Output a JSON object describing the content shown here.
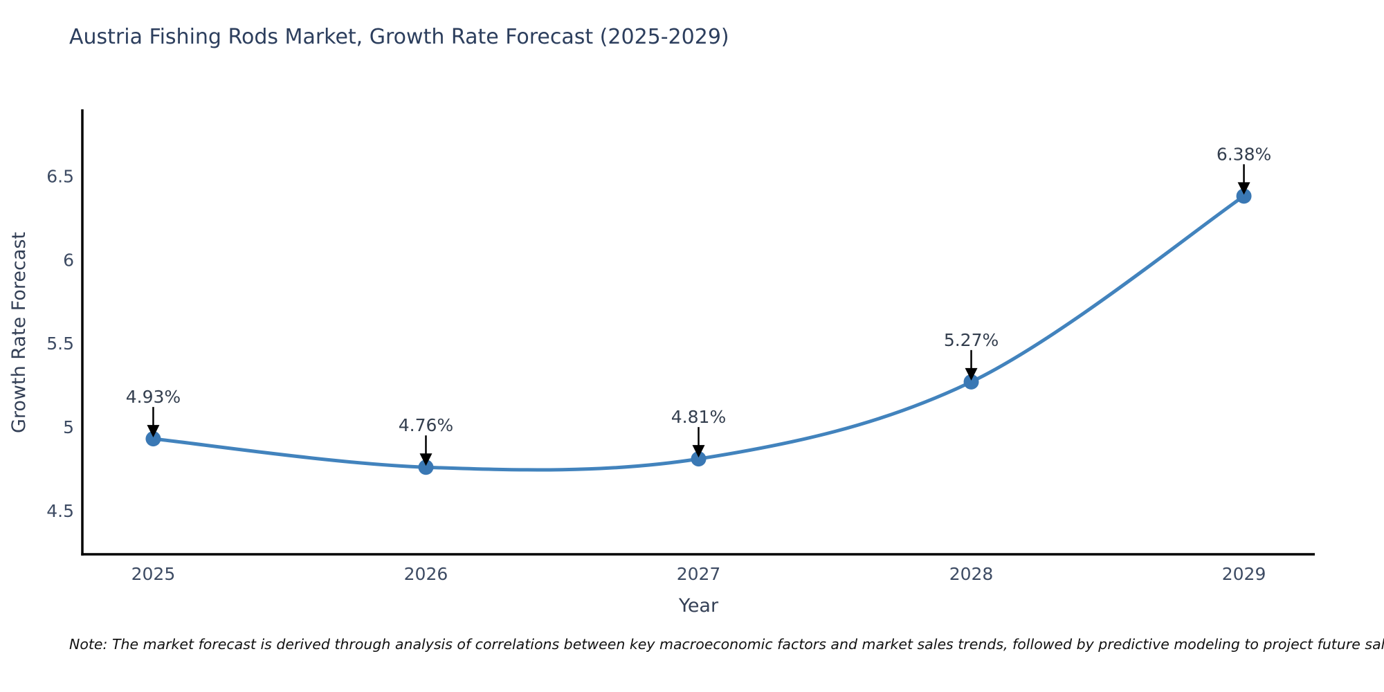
{
  "page": {
    "title": "Austria Fishing Rods Market, Growth Rate Forecast (2025-2029)",
    "note": "Note: The market forecast is derived through analysis of correlations between key macroeconomic factors and market sales trends, followed by predictive modeling to project future sales"
  },
  "chart_data": {
    "type": "line",
    "title": "Austria Fishing Rods Market, Growth Rate Forecast (2025-2029)",
    "xlabel": "Year",
    "ylabel": "Growth Rate Forecast",
    "x": [
      2025,
      2026,
      2027,
      2028,
      2029
    ],
    "x_tick_labels": [
      "2025",
      "2026",
      "2027",
      "2028",
      "2029"
    ],
    "series": [
      {
        "name": "Growth Rate Forecast",
        "values": [
          4.93,
          4.76,
          4.81,
          5.27,
          6.38
        ]
      }
    ],
    "point_labels": [
      "4.93%",
      "4.76%",
      "4.81%",
      "5.27%",
      "6.38%"
    ],
    "y_ticks": [
      4.5,
      5.0,
      5.5,
      6.0,
      6.5
    ],
    "y_tick_labels": [
      "4.5",
      "5",
      "5.5",
      "6",
      "6.5"
    ],
    "xlim": [
      2024.74,
      2029.26
    ],
    "ylim": [
      4.24,
      6.89
    ],
    "line_shape": "spline",
    "grid": false,
    "legend": false,
    "colors": {
      "line": "#4283bd",
      "marker": "#3a78b4",
      "arrow": "#000000",
      "annotation_text": "#333e4e",
      "axis_line": "#000000",
      "tick_text": "#3d4b63",
      "axis_title_text": "#333f55",
      "title_text": "#2c3e5d"
    }
  }
}
